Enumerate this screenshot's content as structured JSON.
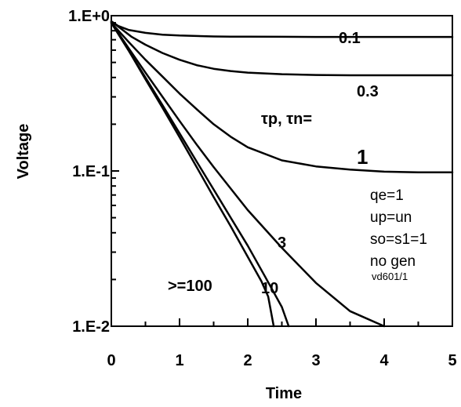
{
  "chart_data": {
    "type": "line",
    "xlabel": "Time",
    "ylabel": "Voltage",
    "xlim": [
      0,
      5
    ],
    "ylim": [
      0.01,
      1
    ],
    "yscale": "log",
    "x_ticks": [
      "0",
      "1",
      "2",
      "3",
      "4",
      "5"
    ],
    "y_ticks": [
      "1.E-2",
      "1.E-1",
      "1.E+0"
    ],
    "tau_label": "τp, τn=",
    "series": [
      {
        "name": "0.1",
        "x": [
          0,
          0.1,
          0.25,
          0.5,
          0.75,
          1.0,
          1.25,
          1.5,
          1.75,
          2.0,
          2.5,
          3.0,
          4.0,
          5.0
        ],
        "y": [
          0.92,
          0.86,
          0.81,
          0.775,
          0.755,
          0.745,
          0.74,
          0.735,
          0.733,
          0.732,
          0.731,
          0.73,
          0.73,
          0.73
        ]
      },
      {
        "name": "0.3",
        "x": [
          0,
          0.15,
          0.3,
          0.5,
          0.75,
          1.0,
          1.25,
          1.5,
          1.75,
          2.0,
          2.5,
          3.0,
          3.5,
          4.0,
          5.0
        ],
        "y": [
          0.92,
          0.82,
          0.73,
          0.65,
          0.575,
          0.52,
          0.48,
          0.455,
          0.44,
          0.43,
          0.42,
          0.415,
          0.413,
          0.413,
          0.413
        ]
      },
      {
        "name": "1",
        "x": [
          0,
          0.25,
          0.5,
          0.75,
          1.0,
          1.25,
          1.5,
          1.75,
          2.0,
          2.5,
          3.0,
          3.5,
          4.0,
          4.5,
          5.0
        ],
        "y": [
          0.9,
          0.68,
          0.52,
          0.405,
          0.315,
          0.25,
          0.2,
          0.166,
          0.142,
          0.117,
          0.107,
          0.102,
          0.099,
          0.098,
          0.098
        ]
      },
      {
        "name": "3",
        "x": [
          0,
          0.25,
          0.5,
          0.75,
          1.0,
          1.25,
          1.5,
          1.75,
          2.0,
          2.5,
          3.0,
          3.5,
          4.0
        ],
        "y": [
          0.9,
          0.62,
          0.43,
          0.3,
          0.21,
          0.148,
          0.106,
          0.077,
          0.056,
          0.032,
          0.019,
          0.0125,
          0.01
        ]
      },
      {
        "name": "10",
        "x": [
          0,
          0.25,
          0.5,
          0.75,
          1.0,
          1.25,
          1.5,
          1.75,
          2.0,
          2.25,
          2.5,
          2.6
        ],
        "y": [
          0.9,
          0.6,
          0.4,
          0.265,
          0.175,
          0.115,
          0.076,
          0.05,
          0.033,
          0.021,
          0.0133,
          0.01
        ]
      },
      {
        "name": ">=100",
        "x": [
          0,
          0.25,
          0.5,
          0.75,
          1.0,
          1.25,
          1.5,
          1.75,
          2.0,
          2.2,
          2.3,
          2.38
        ],
        "y": [
          0.9,
          0.6,
          0.39,
          0.255,
          0.165,
          0.106,
          0.068,
          0.044,
          0.028,
          0.0195,
          0.0155,
          0.01
        ]
      }
    ],
    "annotations": [
      "qe=1",
      "up=un",
      "so=s1=1",
      "no gen",
      "vd601/1"
    ]
  }
}
